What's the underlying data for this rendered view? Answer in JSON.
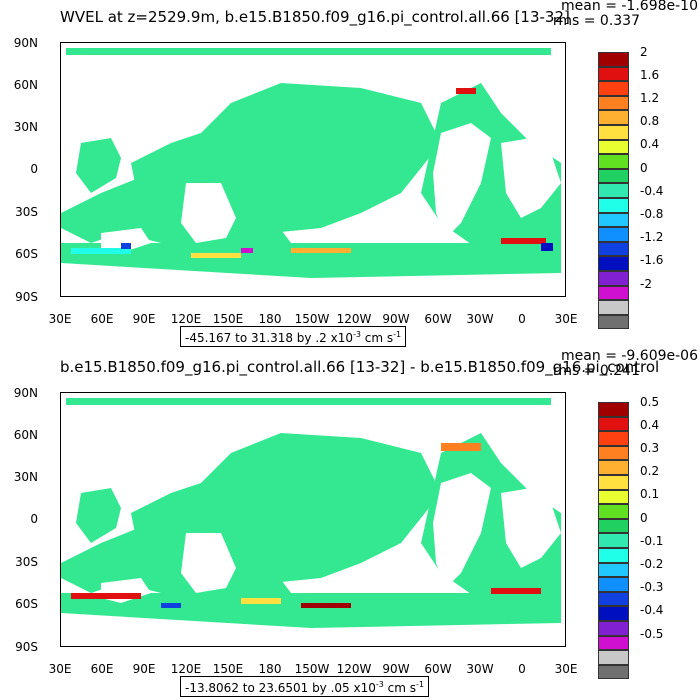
{
  "panels": [
    {
      "title": "WVEL at z=2529.9m, b.e15.B1850.f09_g16.pi_control.all.66 [13-32]",
      "mean": "mean = -1.698e-10",
      "rms": "rms = 0.337",
      "range_text": "-45.167 to 31.318 by .2 x10",
      "range_exp": "-3",
      "range_unit": " cm s",
      "range_unit_exp": "-1",
      "colorbar_labels": [
        "2",
        "1.6",
        "1.2",
        "0.8",
        "0.4",
        "0",
        "-0.4",
        "-0.8",
        "-1.2",
        "-1.6",
        "-2"
      ]
    },
    {
      "title": "b.e15.B1850.f09_g16.pi_control.all.66 [13-32] - b.e15.B1850.f09_g16.pi_control",
      "mean": "mean = -9.609e-06",
      "rms": "rms = 0.241",
      "range_text": "-13.8062 to 23.6501 by .05 x10",
      "range_exp": "-3",
      "range_unit": " cm s",
      "range_unit_exp": "-1",
      "colorbar_labels": [
        "0.5",
        "0.4",
        "0.3",
        "0.2",
        "0.1",
        "0",
        "-0.1",
        "-0.2",
        "-0.3",
        "-0.4",
        "-0.5"
      ]
    }
  ],
  "lat_labels": [
    "90N",
    "60N",
    "30N",
    "0",
    "30S",
    "60S",
    "90S"
  ],
  "lon_labels": [
    "30E",
    "60E",
    "90E",
    "120E",
    "150E",
    "180",
    "150W",
    "120W",
    "90W",
    "60W",
    "30W",
    "0",
    "30E"
  ],
  "colorbar_colors": [
    "#a00000",
    "#e01010",
    "#ff4010",
    "#ff8020",
    "#ffb030",
    "#ffe040",
    "#e8ff30",
    "#60e020",
    "#20d060",
    "#30e8b0",
    "#20ffe8",
    "#20c8ff",
    "#1090ff",
    "#1040e0",
    "#0010c0",
    "#8020d0",
    "#d010d0",
    "#c8c8c8",
    "#707070"
  ],
  "ocean_color": "#33e890",
  "land_color": "#ffffff"
}
